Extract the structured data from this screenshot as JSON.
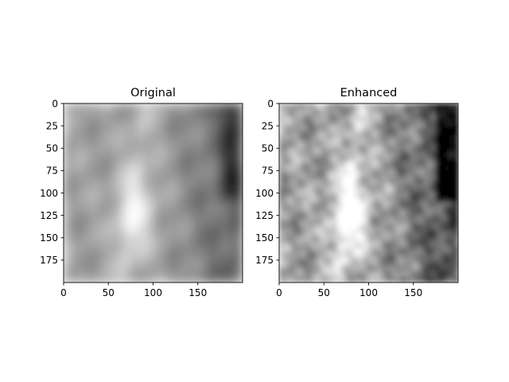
{
  "chart_data": [
    {
      "type": "heatmap",
      "title": "Original",
      "colormap": "gray",
      "image_size": [
        200,
        200
      ],
      "xlim": [
        0,
        200
      ],
      "ylim": [
        200,
        0
      ],
      "x_ticks": [
        0,
        50,
        100,
        150
      ],
      "y_ticks": [
        0,
        25,
        50,
        75,
        100,
        125,
        150,
        175
      ],
      "xlabel": "",
      "ylabel": "",
      "variant": "original"
    },
    {
      "type": "heatmap",
      "title": "Enhanced",
      "colormap": "gray",
      "image_size": [
        200,
        200
      ],
      "xlim": [
        0,
        200
      ],
      "ylim": [
        200,
        0
      ],
      "x_ticks": [
        0,
        50,
        100,
        150
      ],
      "y_ticks": [
        0,
        25,
        50,
        75,
        100,
        125,
        150,
        175
      ],
      "xlabel": "",
      "ylabel": "",
      "variant": "enhanced"
    }
  ]
}
